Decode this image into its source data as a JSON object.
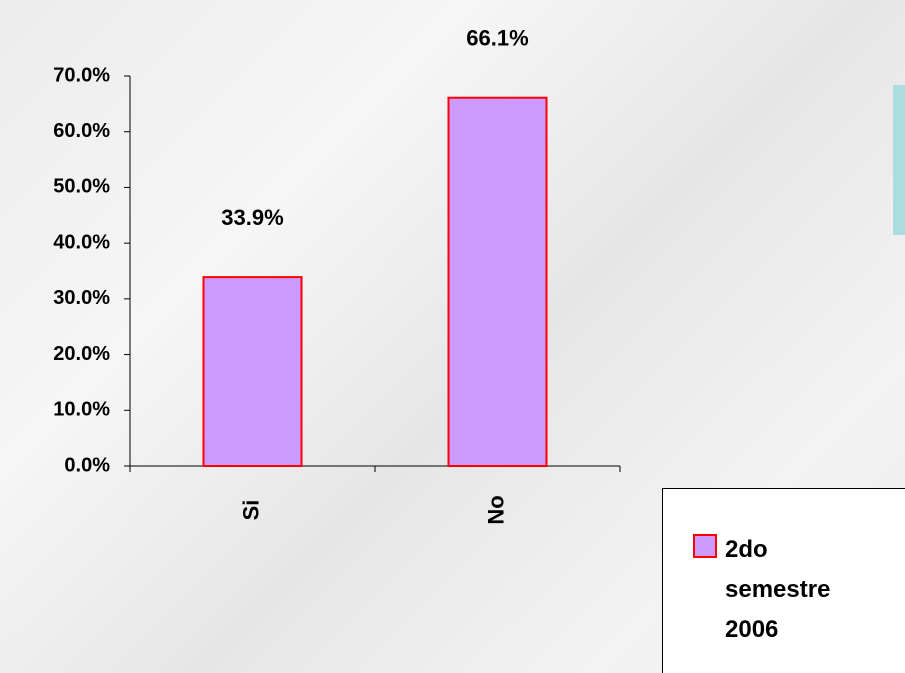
{
  "chart_data": {
    "type": "bar",
    "categories": [
      "Si",
      "No"
    ],
    "series": [
      {
        "name": "2do semestre 2006",
        "color": "#cc99ff",
        "edgecolor": "#ff0000",
        "values": [
          33.9,
          66.1
        ],
        "value_labels": [
          "33.9%",
          "66.1%"
        ]
      }
    ],
    "ylim": [
      0,
      70
    ],
    "yticks": [
      {
        "value": 0,
        "label": "0.0%"
      },
      {
        "value": 10,
        "label": "10.0%"
      },
      {
        "value": 20,
        "label": "20.0%"
      },
      {
        "value": 30,
        "label": "30.0%"
      },
      {
        "value": 40,
        "label": "40.0%"
      },
      {
        "value": 50,
        "label": "50.0%"
      },
      {
        "value": 60,
        "label": "60.0%"
      },
      {
        "value": 70,
        "label": "70.0%"
      }
    ],
    "grid": false
  }
}
